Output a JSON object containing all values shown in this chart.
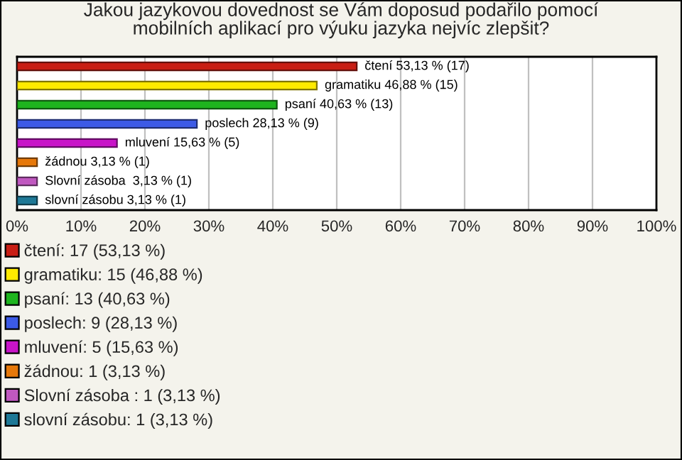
{
  "chart_data": {
    "type": "bar",
    "orientation": "horizontal",
    "title": "Jakou jazykovou dovednost se Vám doposud podařilo pomocí\nmobilních aplikací pro výuku jazyka nejvíc zlepšit?",
    "categories": [
      null,
      null,
      null,
      null,
      null,
      null,
      null,
      null
    ],
    "series": [
      {
        "name": "čtení: 17 (53,13 %)",
        "color": "#c81e14",
        "values": [
          53.13,
          null,
          null,
          null,
          null,
          null,
          null,
          null
        ],
        "value_labels": [
          "čtení 53,13 % (17)",
          null,
          null,
          null,
          null,
          null,
          null,
          null
        ]
      },
      {
        "name": "gramatiku: 15 (46,88 %)",
        "color": "#ffea00",
        "values": [
          null,
          46.88,
          null,
          null,
          null,
          null,
          null,
          null
        ],
        "value_labels": [
          null,
          "gramatiku 46,88 % (15)",
          null,
          null,
          null,
          null,
          null,
          null
        ]
      },
      {
        "name": "psaní: 13 (40,63 %)",
        "color": "#1eb41e",
        "values": [
          null,
          null,
          40.63,
          null,
          null,
          null,
          null,
          null
        ],
        "value_labels": [
          null,
          null,
          "psaní 40,63 % (13)",
          null,
          null,
          null,
          null,
          null
        ]
      },
      {
        "name": "poslech: 9 (28,13 %)",
        "color": "#3c5ae6",
        "values": [
          null,
          null,
          null,
          28.13,
          null,
          null,
          null,
          null
        ],
        "value_labels": [
          null,
          null,
          null,
          "poslech 28,13 % (9)",
          null,
          null,
          null,
          null
        ]
      },
      {
        "name": "mluvení: 5 (15,63 %)",
        "color": "#c814c8",
        "values": [
          null,
          null,
          null,
          null,
          15.63,
          null,
          null,
          null
        ],
        "value_labels": [
          null,
          null,
          null,
          null,
          "mluvení 15,63 % (5)",
          null,
          null,
          null
        ]
      },
      {
        "name": "žádnou: 1 (3,13 %)",
        "color": "#e6780a",
        "values": [
          null,
          null,
          null,
          null,
          null,
          3.13,
          null,
          null
        ],
        "value_labels": [
          null,
          null,
          null,
          null,
          null,
          "žádnou 3,13 % (1)",
          null,
          null
        ]
      },
      {
        "name": "Slovní zásoba : 1 (3,13 %)",
        "color": "#c058c0",
        "values": [
          null,
          null,
          null,
          null,
          null,
          null,
          3.13,
          null
        ],
        "value_labels": [
          null,
          null,
          null,
          null,
          null,
          null,
          "Slovní zásoba  3,13 % (1)",
          null
        ]
      },
      {
        "name": "slovní zásobu: 1 (3,13 %)",
        "color": "#1e7896",
        "values": [
          null,
          null,
          null,
          null,
          null,
          null,
          null,
          3.13
        ],
        "value_labels": [
          null,
          null,
          null,
          null,
          null,
          null,
          null,
          "slovní zásobu 3,13 % (1)"
        ]
      }
    ],
    "xlim": [
      0,
      100
    ],
    "xticks": [
      {
        "value": 0,
        "label": "0%"
      },
      {
        "value": 10,
        "label": "10%"
      },
      {
        "value": 20,
        "label": "20%"
      },
      {
        "value": 30,
        "label": "30%"
      },
      {
        "value": 40,
        "label": "40%"
      },
      {
        "value": 50,
        "label": "50%"
      },
      {
        "value": 60,
        "label": "60%"
      },
      {
        "value": 70,
        "label": "70%"
      },
      {
        "value": 80,
        "label": "80%"
      },
      {
        "value": 90,
        "label": "90%"
      },
      {
        "value": 100,
        "label": "100%"
      }
    ],
    "grid": "x",
    "legend": "bottom"
  }
}
